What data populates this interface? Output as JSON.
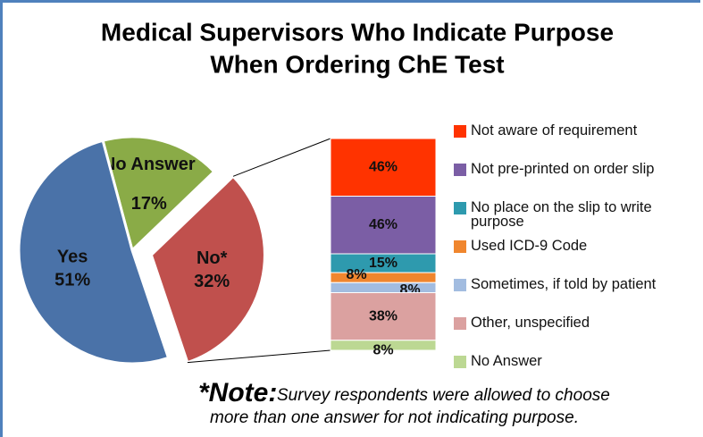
{
  "chart_data": {
    "type": "pie-of-bar",
    "title": [
      "Medical Supervisors Who Indicate Purpose",
      "When Ordering ChE Test"
    ],
    "categories": [
      "No Answer",
      "No*",
      "Yes"
    ],
    "values": [
      17,
      32,
      51
    ],
    "value_labels": [
      "17%",
      "32%",
      "51%"
    ],
    "colors": [
      "#8aab47",
      "#c0504d",
      "#4a72a8"
    ],
    "exploded": 1,
    "bar": {
      "series": [
        {
          "name": "Not aware of requirement",
          "color": "#ff3300",
          "values": [
            46
          ],
          "value_labels": [
            "46%"
          ]
        },
        {
          "name": "Not pre-printed on order slip",
          "color": "#7b5ea5",
          "values": [
            46
          ],
          "value_labels": [
            "46%"
          ]
        },
        {
          "name": "No place on the slip to write purpose",
          "color": "#2e9aae",
          "values": [
            15
          ],
          "value_labels": [
            "15%"
          ]
        },
        {
          "name": "Used ICD-9 Code",
          "color": "#f0862e",
          "values": [
            8
          ],
          "value_labels": [
            "8%"
          ]
        },
        {
          "name": "Sometimes, if told by patient",
          "color": "#a2bce0",
          "values": [
            8
          ],
          "value_labels": [
            "8%"
          ]
        },
        {
          "name": "Other, unspecified",
          "color": "#dba1a0",
          "values": [
            38
          ],
          "value_labels": [
            "38%"
          ]
        },
        {
          "name": "No Answer",
          "color": "#bcd893",
          "values": [
            8
          ],
          "value_labels": [
            "8%"
          ]
        }
      ]
    },
    "note": {
      "label": "*Note:",
      "lines": [
        "Survey respondents were allowed to choose",
        "more than one answer for not indicating purpose."
      ]
    }
  }
}
